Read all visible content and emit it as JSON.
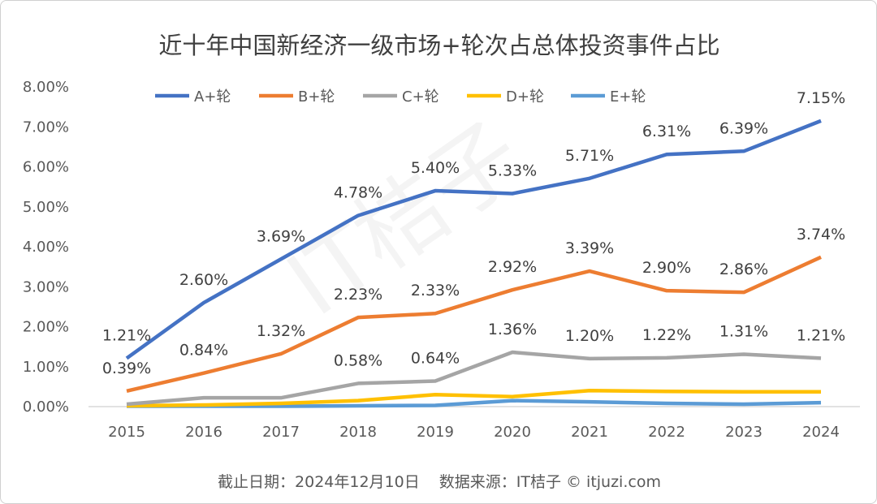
{
  "chart_data": {
    "type": "line",
    "title": "近十年中国新经济一级市场+轮次占总体投资事件占比",
    "categories": [
      "2015",
      "2016",
      "2017",
      "2018",
      "2019",
      "2020",
      "2021",
      "2022",
      "2023",
      "2024"
    ],
    "ylim": [
      0,
      8
    ],
    "yticks": [
      "0.00%",
      "1.00%",
      "2.00%",
      "3.00%",
      "4.00%",
      "5.00%",
      "6.00%",
      "7.00%",
      "8.00%"
    ],
    "legend_position": "top",
    "series": [
      {
        "name": "A+轮",
        "color": "#4472C4",
        "values": [
          1.21,
          2.6,
          3.69,
          4.78,
          5.4,
          5.33,
          5.71,
          6.31,
          6.39,
          7.15
        ],
        "labels": [
          "1.21%",
          "2.60%",
          "3.69%",
          "4.78%",
          "5.40%",
          "5.33%",
          "5.71%",
          "6.31%",
          "6.39%",
          "7.15%"
        ]
      },
      {
        "name": "B+轮",
        "color": "#ED7D31",
        "values": [
          0.39,
          0.84,
          1.32,
          2.23,
          2.33,
          2.92,
          3.39,
          2.9,
          2.86,
          3.74
        ],
        "labels": [
          "0.39%",
          "0.84%",
          "1.32%",
          "2.23%",
          "2.33%",
          "2.92%",
          "3.39%",
          "2.90%",
          "2.86%",
          "3.74%"
        ]
      },
      {
        "name": "C+轮",
        "color": "#A5A5A5",
        "values": [
          0.06,
          0.22,
          0.22,
          0.58,
          0.64,
          1.36,
          1.2,
          1.22,
          1.31,
          1.21
        ],
        "labels": [
          null,
          null,
          null,
          "0.58%",
          "0.64%",
          "1.36%",
          "1.20%",
          "1.22%",
          "1.31%",
          "1.21%"
        ]
      },
      {
        "name": "D+轮",
        "color": "#FFC000",
        "values": [
          0.02,
          0.04,
          0.08,
          0.15,
          0.3,
          0.25,
          0.4,
          0.38,
          0.37,
          0.37
        ],
        "labels": []
      },
      {
        "name": "E+轮",
        "color": "#5B9BD5",
        "values": [
          0.01,
          0.01,
          0.01,
          0.02,
          0.03,
          0.15,
          0.12,
          0.08,
          0.06,
          0.1
        ],
        "labels": []
      }
    ]
  },
  "watermark": "IT桔子 ITJUZI.COM",
  "footer": {
    "date": "截止日期：2024年12月10日",
    "source": "数据来源：IT桔子 © itjuzi.com"
  }
}
